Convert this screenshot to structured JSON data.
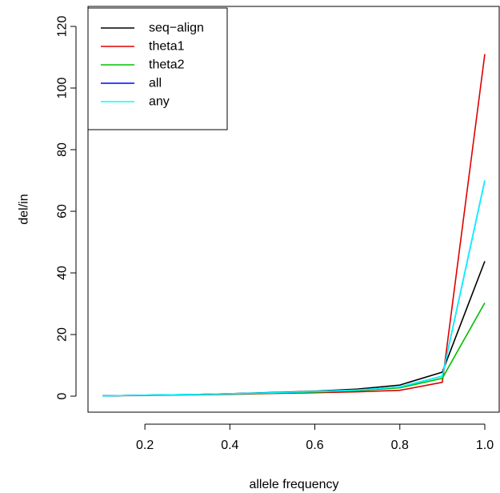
{
  "chart_data": {
    "type": "line",
    "xlabel": "allele frequency",
    "ylabel": "del/in",
    "xlim": [
      0.1,
      1.0
    ],
    "ylim": [
      0,
      120
    ],
    "x_ticks": [
      0.2,
      0.4,
      0.6,
      0.8,
      1.0
    ],
    "x_tick_labels": [
      "0.2",
      "0.4",
      "0.6",
      "0.8",
      "1.0"
    ],
    "y_ticks": [
      0,
      20,
      40,
      60,
      80,
      100,
      120
    ],
    "y_tick_labels": [
      "0",
      "20",
      "40",
      "60",
      "80",
      "100",
      "120"
    ],
    "grid": false,
    "legend_position": "top-left",
    "x": [
      0.1,
      0.2,
      0.3,
      0.4,
      0.5,
      0.6,
      0.7,
      0.8,
      0.9,
      1.0
    ],
    "series": [
      {
        "name": "seq−align",
        "color": "#000000",
        "values": [
          0.1,
          0.3,
          0.5,
          0.8,
          1.2,
          1.6,
          2.3,
          3.6,
          7.8,
          43.8
        ]
      },
      {
        "name": "theta1",
        "color": "#df0000",
        "values": [
          0.1,
          0.2,
          0.4,
          0.6,
          0.9,
          1.1,
          1.4,
          1.9,
          4.5,
          111.0
        ]
      },
      {
        "name": "theta2",
        "color": "#00c000",
        "values": [
          0.1,
          0.3,
          0.5,
          0.7,
          1.0,
          1.3,
          1.8,
          2.7,
          5.8,
          30.3
        ]
      },
      {
        "name": "all",
        "color": "#0000ff",
        "values": [
          0.1,
          0.3,
          0.5,
          0.8,
          1.1,
          1.5,
          2.0,
          3.0,
          6.5,
          70.0
        ]
      },
      {
        "name": "any",
        "color": "#00ffff",
        "values": [
          0.1,
          0.3,
          0.5,
          0.8,
          1.1,
          1.5,
          2.0,
          3.0,
          6.5,
          70.0
        ]
      }
    ]
  }
}
